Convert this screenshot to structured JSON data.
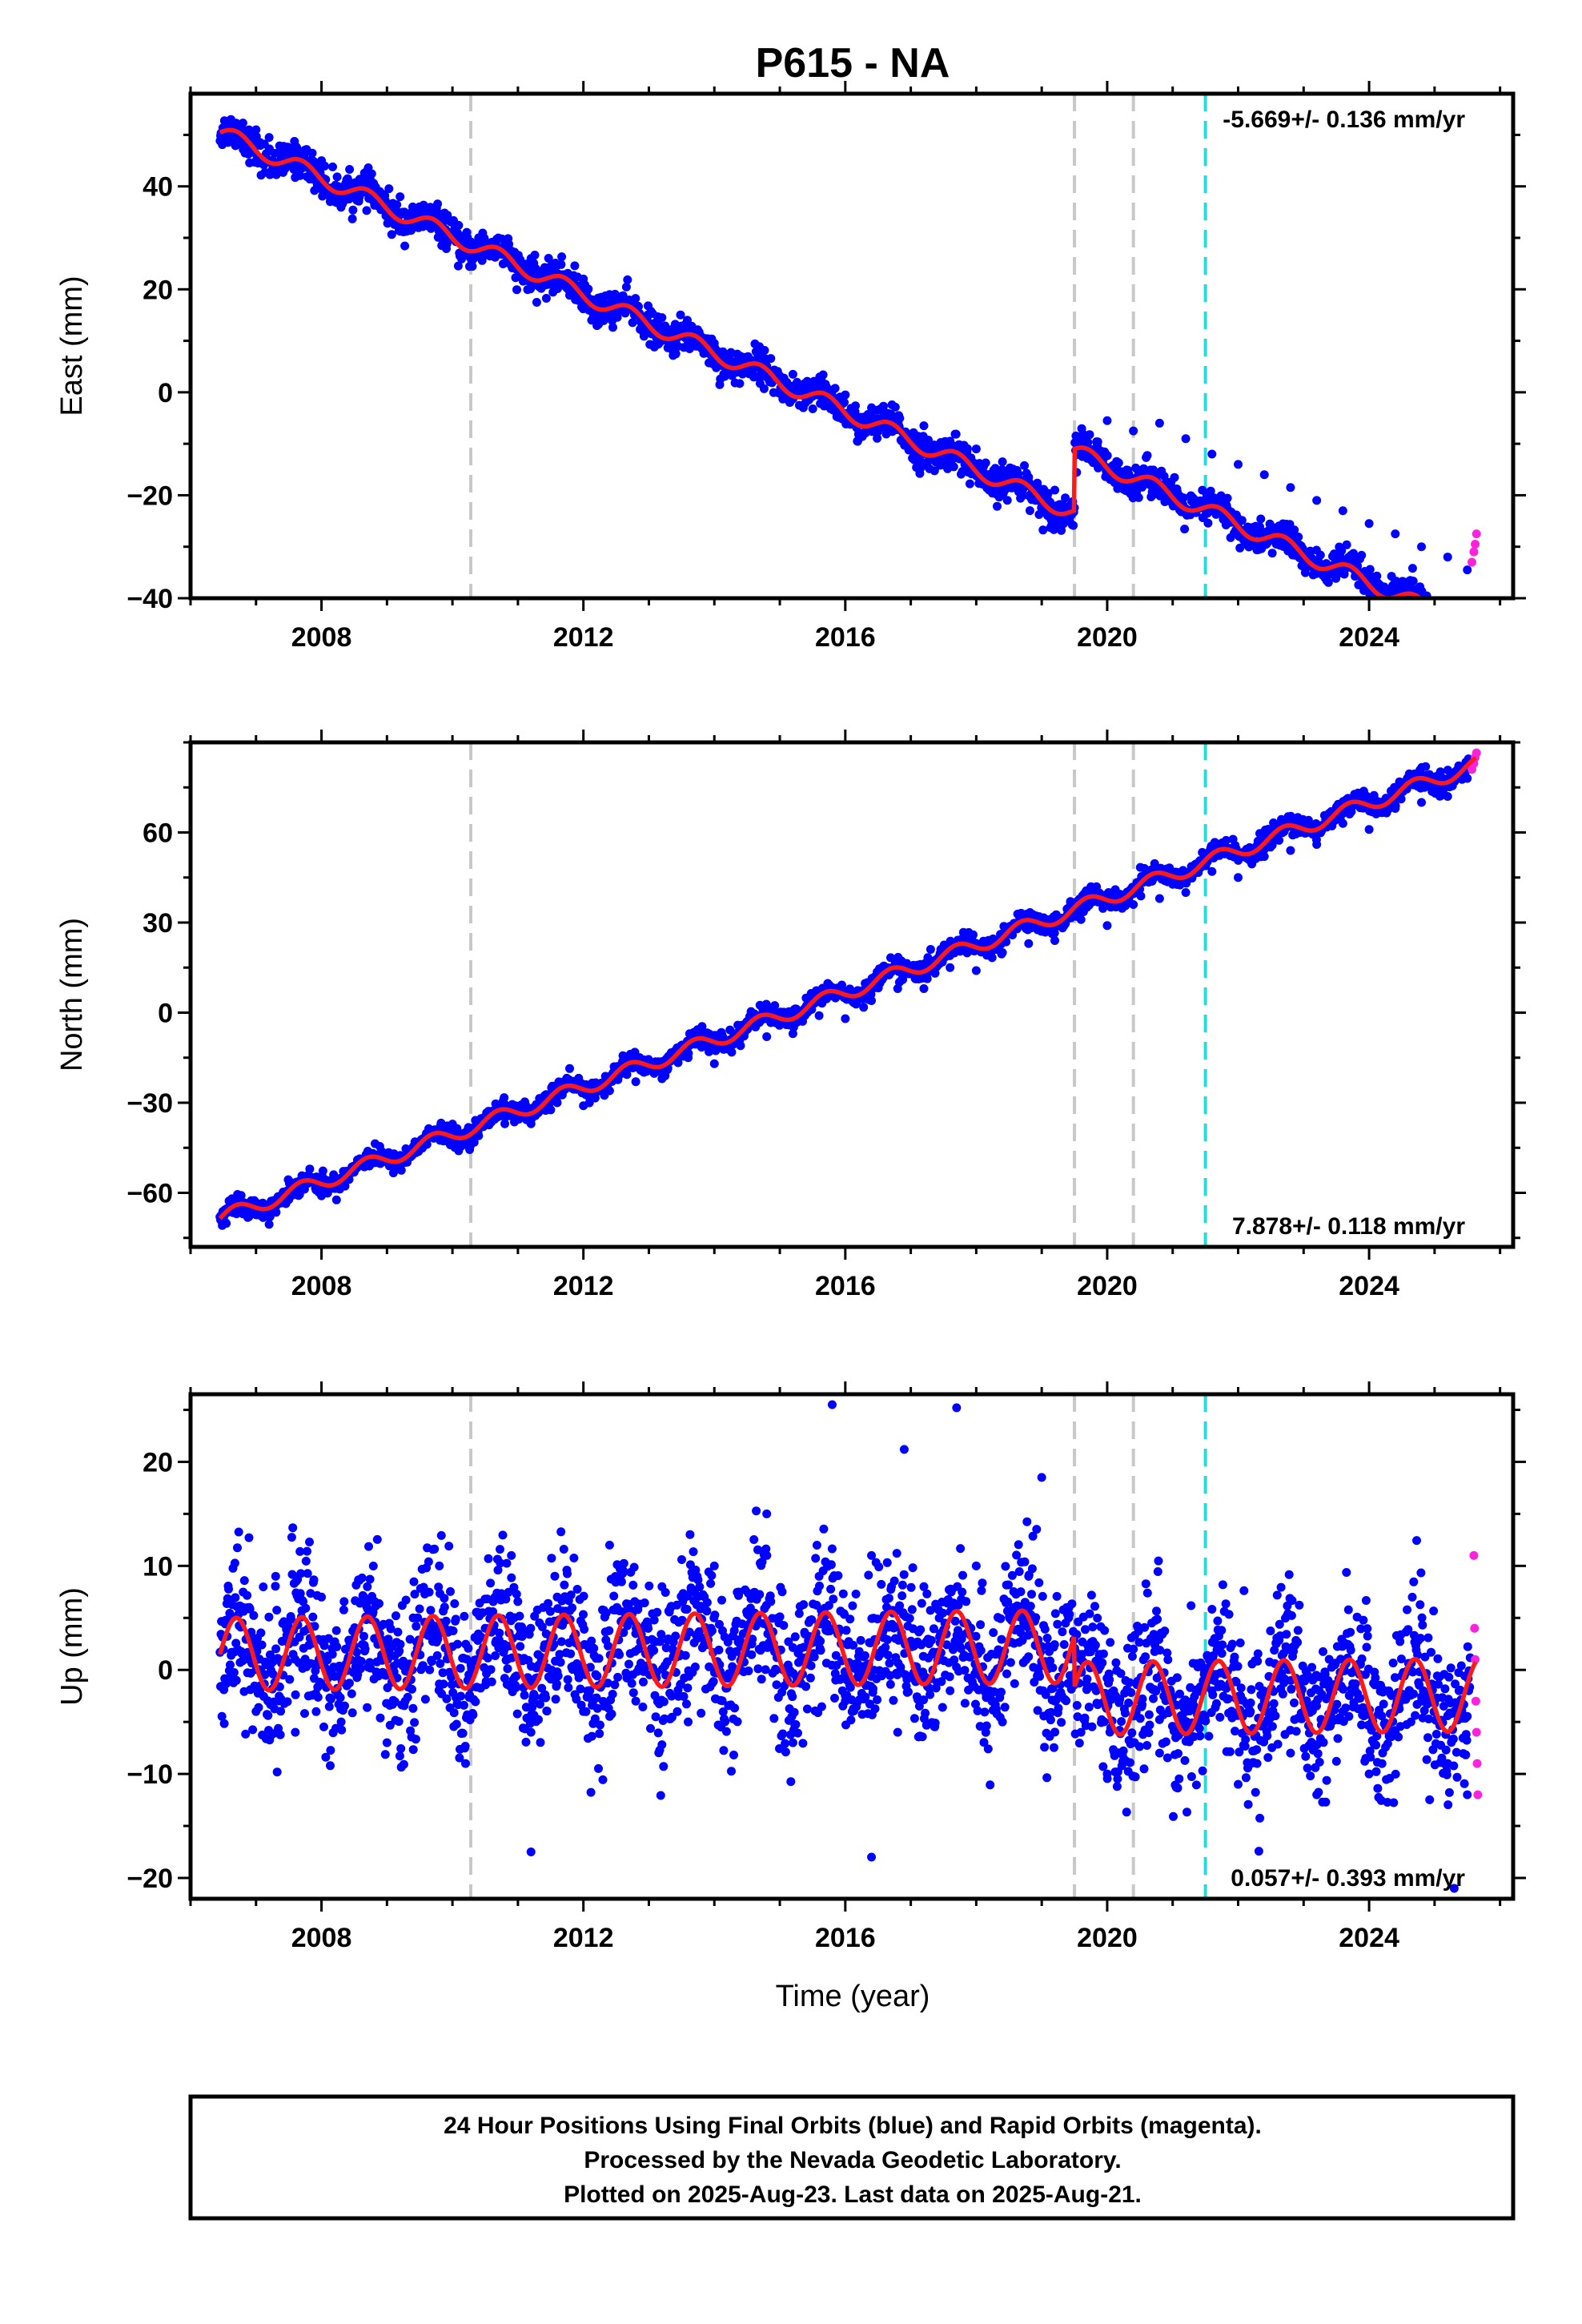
{
  "title": "P615 - NA",
  "footer": {
    "lines": [
      "24 Hour Positions Using Final Orbits (blue) and Rapid Orbits (magenta).",
      "Processed by the Nevada Geodetic Laboratory.",
      "Plotted on 2025-Aug-23. Last data on 2025-Aug-21."
    ]
  },
  "colors": {
    "final_orbits": "#0000ff",
    "rapid_orbits": "#ff22dd",
    "model": "#ff1a1a",
    "equipment_change": "#c8c8c8",
    "earthquake": "#22dddd"
  },
  "chart_data": [
    {
      "type": "scatter",
      "component": "east",
      "ylabel": "East (mm)",
      "xlim": [
        2006.0,
        2026.2
      ],
      "ylim": [
        -40,
        58
      ],
      "x_ticks": [
        2008,
        2012,
        2016,
        2020,
        2024
      ],
      "y_ticks": [
        -40,
        -20,
        0,
        20,
        40
      ],
      "rate_label": "-5.669+/- 0.136 mm/yr",
      "rate_label_position": "top-right",
      "model": {
        "start": 2006.45,
        "end": 2025.63,
        "ref_time": 2006.45,
        "offset": 50.5,
        "rate": -5.669,
        "annual_amplitude": 1.6,
        "annual_phase": 0.0,
        "steps": [
          {
            "year": 2019.5,
            "size": 12.0
          }
        ]
      },
      "final_orbit_points": [
        [
          2006.46,
          49.8
        ],
        [
          2006.6,
          51.2
        ],
        [
          2006.8,
          52.3
        ],
        [
          2007.0,
          51.0
        ],
        [
          2007.2,
          49.5
        ],
        [
          2007.4,
          47.2
        ],
        [
          2007.6,
          45.8
        ],
        [
          2008.0,
          45.0
        ],
        [
          2008.4,
          41.5
        ],
        [
          2008.8,
          40.2
        ],
        [
          2009.2,
          38.0
        ],
        [
          2009.6,
          35.2
        ],
        [
          2010.0,
          33.0
        ],
        [
          2010.4,
          30.0
        ],
        [
          2010.8,
          28.5
        ],
        [
          2011.2,
          26.0
        ],
        [
          2011.6,
          23.0
        ],
        [
          2012.0,
          22.0
        ],
        [
          2012.4,
          19.0
        ],
        [
          2012.8,
          16.0
        ],
        [
          2013.2,
          14.5
        ],
        [
          2013.6,
          12.0
        ],
        [
          2014.0,
          9.5
        ],
        [
          2014.4,
          7.0
        ],
        [
          2014.8,
          5.0
        ],
        [
          2015.2,
          3.5
        ],
        [
          2015.6,
          1.0
        ],
        [
          2016.0,
          -0.5
        ],
        [
          2016.4,
          -3.0
        ],
        [
          2016.8,
          -5.0
        ],
        [
          2017.2,
          -6.5
        ],
        [
          2017.6,
          -9.5
        ],
        [
          2018.0,
          -11.0
        ],
        [
          2018.4,
          -13.5
        ],
        [
          2018.8,
          -16.5
        ],
        [
          2019.2,
          -19.0
        ],
        [
          2019.45,
          -22.0
        ],
        [
          2019.6,
          -9.0
        ],
        [
          2020.0,
          -5.5
        ],
        [
          2020.4,
          -7.5
        ],
        [
          2020.8,
          -6.0
        ],
        [
          2021.2,
          -9.0
        ],
        [
          2021.6,
          -12.0
        ],
        [
          2022.0,
          -14.0
        ],
        [
          2022.4,
          -16.0
        ],
        [
          2022.8,
          -18.5
        ],
        [
          2023.2,
          -21.0
        ],
        [
          2023.6,
          -23.0
        ],
        [
          2024.0,
          -25.5
        ],
        [
          2024.4,
          -27.5
        ],
        [
          2024.8,
          -30.0
        ],
        [
          2025.2,
          -32.0
        ],
        [
          2025.5,
          -34.5
        ]
      ],
      "rapid_orbit_points": [
        [
          2025.57,
          -33.0
        ],
        [
          2025.6,
          -31.0
        ],
        [
          2025.62,
          -29.5
        ],
        [
          2025.64,
          -27.5
        ]
      ],
      "vlines": [
        {
          "year": 2010.28,
          "kind": "equipment_change"
        },
        {
          "year": 2019.5,
          "kind": "equipment_change"
        },
        {
          "year": 2020.4,
          "kind": "equipment_change"
        },
        {
          "year": 2021.5,
          "kind": "earthquake"
        }
      ]
    },
    {
      "type": "scatter",
      "component": "north",
      "ylabel": "North (mm)",
      "xlim": [
        2006.0,
        2026.2
      ],
      "ylim": [
        -78,
        90
      ],
      "x_ticks": [
        2008,
        2012,
        2016,
        2020,
        2024
      ],
      "y_ticks": [
        -60,
        -30,
        0,
        30,
        60
      ],
      "rate_label": "7.878+/- 0.118 mm/yr",
      "rate_label_position": "bottom-right",
      "model": {
        "start": 2006.45,
        "end": 2025.63,
        "ref_time": 2006.45,
        "offset": -68.5,
        "rate": 7.878,
        "annual_amplitude": 2.5,
        "annual_phase": 0.0,
        "steps": []
      },
      "final_orbit_points": [
        [
          2006.46,
          -68.0
        ],
        [
          2006.8,
          -67.0
        ],
        [
          2007.2,
          -70.5
        ],
        [
          2007.6,
          -59.0
        ],
        [
          2008.0,
          -61.0
        ],
        [
          2008.4,
          -55.0
        ],
        [
          2008.8,
          -50.0
        ],
        [
          2009.2,
          -49.0
        ],
        [
          2009.6,
          -43.0
        ],
        [
          2010.0,
          -44.0
        ],
        [
          2010.4,
          -41.0
        ],
        [
          2010.8,
          -37.0
        ],
        [
          2011.2,
          -37.0
        ],
        [
          2011.6,
          -30.0
        ],
        [
          2012.0,
          -31.0
        ],
        [
          2012.4,
          -26.0
        ],
        [
          2012.8,
          -23.0
        ],
        [
          2013.2,
          -22.0
        ],
        [
          2013.6,
          -15.0
        ],
        [
          2014.0,
          -17.0
        ],
        [
          2014.4,
          -11.0
        ],
        [
          2014.8,
          -8.0
        ],
        [
          2015.2,
          -7.0
        ],
        [
          2015.6,
          -1.0
        ],
        [
          2016.0,
          -2.0
        ],
        [
          2016.4,
          4.0
        ],
        [
          2016.8,
          8.0
        ],
        [
          2017.2,
          8.0
        ],
        [
          2017.6,
          15.0
        ],
        [
          2018.0,
          14.0
        ],
        [
          2018.4,
          20.0
        ],
        [
          2018.8,
          23.0
        ],
        [
          2019.2,
          24.0
        ],
        [
          2019.6,
          31.0
        ],
        [
          2020.0,
          29.0
        ],
        [
          2020.4,
          36.0
        ],
        [
          2020.8,
          38.0
        ],
        [
          2021.2,
          40.0
        ],
        [
          2021.6,
          47.0
        ],
        [
          2022.0,
          45.0
        ],
        [
          2022.4,
          52.0
        ],
        [
          2022.8,
          54.0
        ],
        [
          2023.2,
          56.0
        ],
        [
          2023.6,
          63.0
        ],
        [
          2024.0,
          61.0
        ],
        [
          2024.4,
          68.0
        ],
        [
          2024.8,
          70.0
        ],
        [
          2025.2,
          72.0
        ],
        [
          2025.5,
          78.0
        ]
      ],
      "rapid_orbit_points": [
        [
          2025.57,
          81.0
        ],
        [
          2025.6,
          83.0
        ],
        [
          2025.62,
          85.0
        ],
        [
          2025.64,
          86.5
        ]
      ],
      "vlines": [
        {
          "year": 2010.28,
          "kind": "equipment_change"
        },
        {
          "year": 2019.5,
          "kind": "equipment_change"
        },
        {
          "year": 2020.4,
          "kind": "equipment_change"
        },
        {
          "year": 2021.5,
          "kind": "earthquake"
        }
      ]
    },
    {
      "type": "scatter",
      "component": "up",
      "ylabel": "Up (mm)",
      "xlabel": "Time (year)",
      "xlim": [
        2006.0,
        2026.2
      ],
      "ylim": [
        -22,
        26.5
      ],
      "x_ticks": [
        2008,
        2012,
        2016,
        2020,
        2024
      ],
      "y_ticks": [
        -20,
        -10,
        0,
        10,
        20
      ],
      "rate_label": "0.057+/- 0.393 mm/yr",
      "rate_label_position": "bottom-right",
      "model": {
        "start": 2006.45,
        "end": 2025.63,
        "ref_time": 2006.45,
        "offset": 1.5,
        "rate": 0.057,
        "annual_amplitude": 3.5,
        "annual_phase": 0.0,
        "steps": [
          {
            "year": 2019.5,
            "size": -5.0
          }
        ]
      },
      "final_orbit_points": [
        [
          2006.5,
          2.0
        ],
        [
          2006.8,
          6.0
        ],
        [
          2007.0,
          -4.0
        ],
        [
          2007.3,
          9.0
        ],
        [
          2007.6,
          -6.0
        ],
        [
          2008.0,
          7.0
        ],
        [
          2008.3,
          -5.0
        ],
        [
          2008.7,
          8.0
        ],
        [
          2009.0,
          -7.0
        ],
        [
          2009.4,
          5.0
        ],
        [
          2009.8,
          10.0
        ],
        [
          2010.2,
          -9.0
        ],
        [
          2010.5,
          4.0
        ],
        [
          2010.9,
          11.0
        ],
        [
          2011.2,
          -6.0
        ],
        [
          2011.6,
          7.0
        ],
        [
          2012.0,
          -4.0
        ],
        [
          2012.4,
          12.0
        ],
        [
          2012.8,
          -3.0
        ],
        [
          2013.2,
          8.0
        ],
        [
          2013.6,
          -5.0
        ],
        [
          2014.0,
          10.0
        ],
        [
          2014.4,
          0.0
        ],
        [
          2014.8,
          15.0
        ],
        [
          2015.2,
          -7.0
        ],
        [
          2015.6,
          9.0
        ],
        [
          2016.0,
          -3.0
        ],
        [
          2016.4,
          11.0
        ],
        [
          2016.8,
          -6.0
        ],
        [
          2017.2,
          8.0
        ],
        [
          2017.6,
          -2.0
        ],
        [
          2018.0,
          10.0
        ],
        [
          2018.4,
          -5.0
        ],
        [
          2018.8,
          9.0
        ],
        [
          2019.2,
          -3.0
        ],
        [
          2019.6,
          -6.0
        ],
        [
          2020.0,
          -10.0
        ],
        [
          2020.4,
          2.0
        ],
        [
          2020.8,
          -8.0
        ],
        [
          2021.2,
          -4.0
        ],
        [
          2021.6,
          -2.0
        ],
        [
          2022.0,
          -11.0
        ],
        [
          2022.4,
          -3.0
        ],
        [
          2022.8,
          -8.0
        ],
        [
          2023.2,
          -12.0
        ],
        [
          2023.6,
          -4.0
        ],
        [
          2024.0,
          -10.0
        ],
        [
          2024.4,
          -6.0
        ],
        [
          2024.8,
          -3.0
        ],
        [
          2025.2,
          -9.0
        ],
        [
          2025.5,
          -12.0
        ],
        [
          2011.2,
          -17.5
        ],
        [
          2016.4,
          -18.0
        ],
        [
          2015.8,
          25.5
        ],
        [
          2017.7,
          25.2
        ],
        [
          2016.9,
          21.2
        ],
        [
          2019.0,
          18.5
        ],
        [
          2025.3,
          -21.0
        ]
      ],
      "rapid_orbit_points": [
        [
          2025.6,
          11.0
        ],
        [
          2025.61,
          4.0
        ],
        [
          2025.62,
          1.0
        ],
        [
          2025.63,
          -3.0
        ],
        [
          2025.64,
          -6.0
        ],
        [
          2025.65,
          -9.0
        ],
        [
          2025.66,
          -12.0
        ]
      ],
      "vlines": [
        {
          "year": 2010.28,
          "kind": "equipment_change"
        },
        {
          "year": 2019.5,
          "kind": "equipment_change"
        },
        {
          "year": 2020.4,
          "kind": "equipment_change"
        },
        {
          "year": 2021.5,
          "kind": "earthquake"
        }
      ]
    }
  ]
}
